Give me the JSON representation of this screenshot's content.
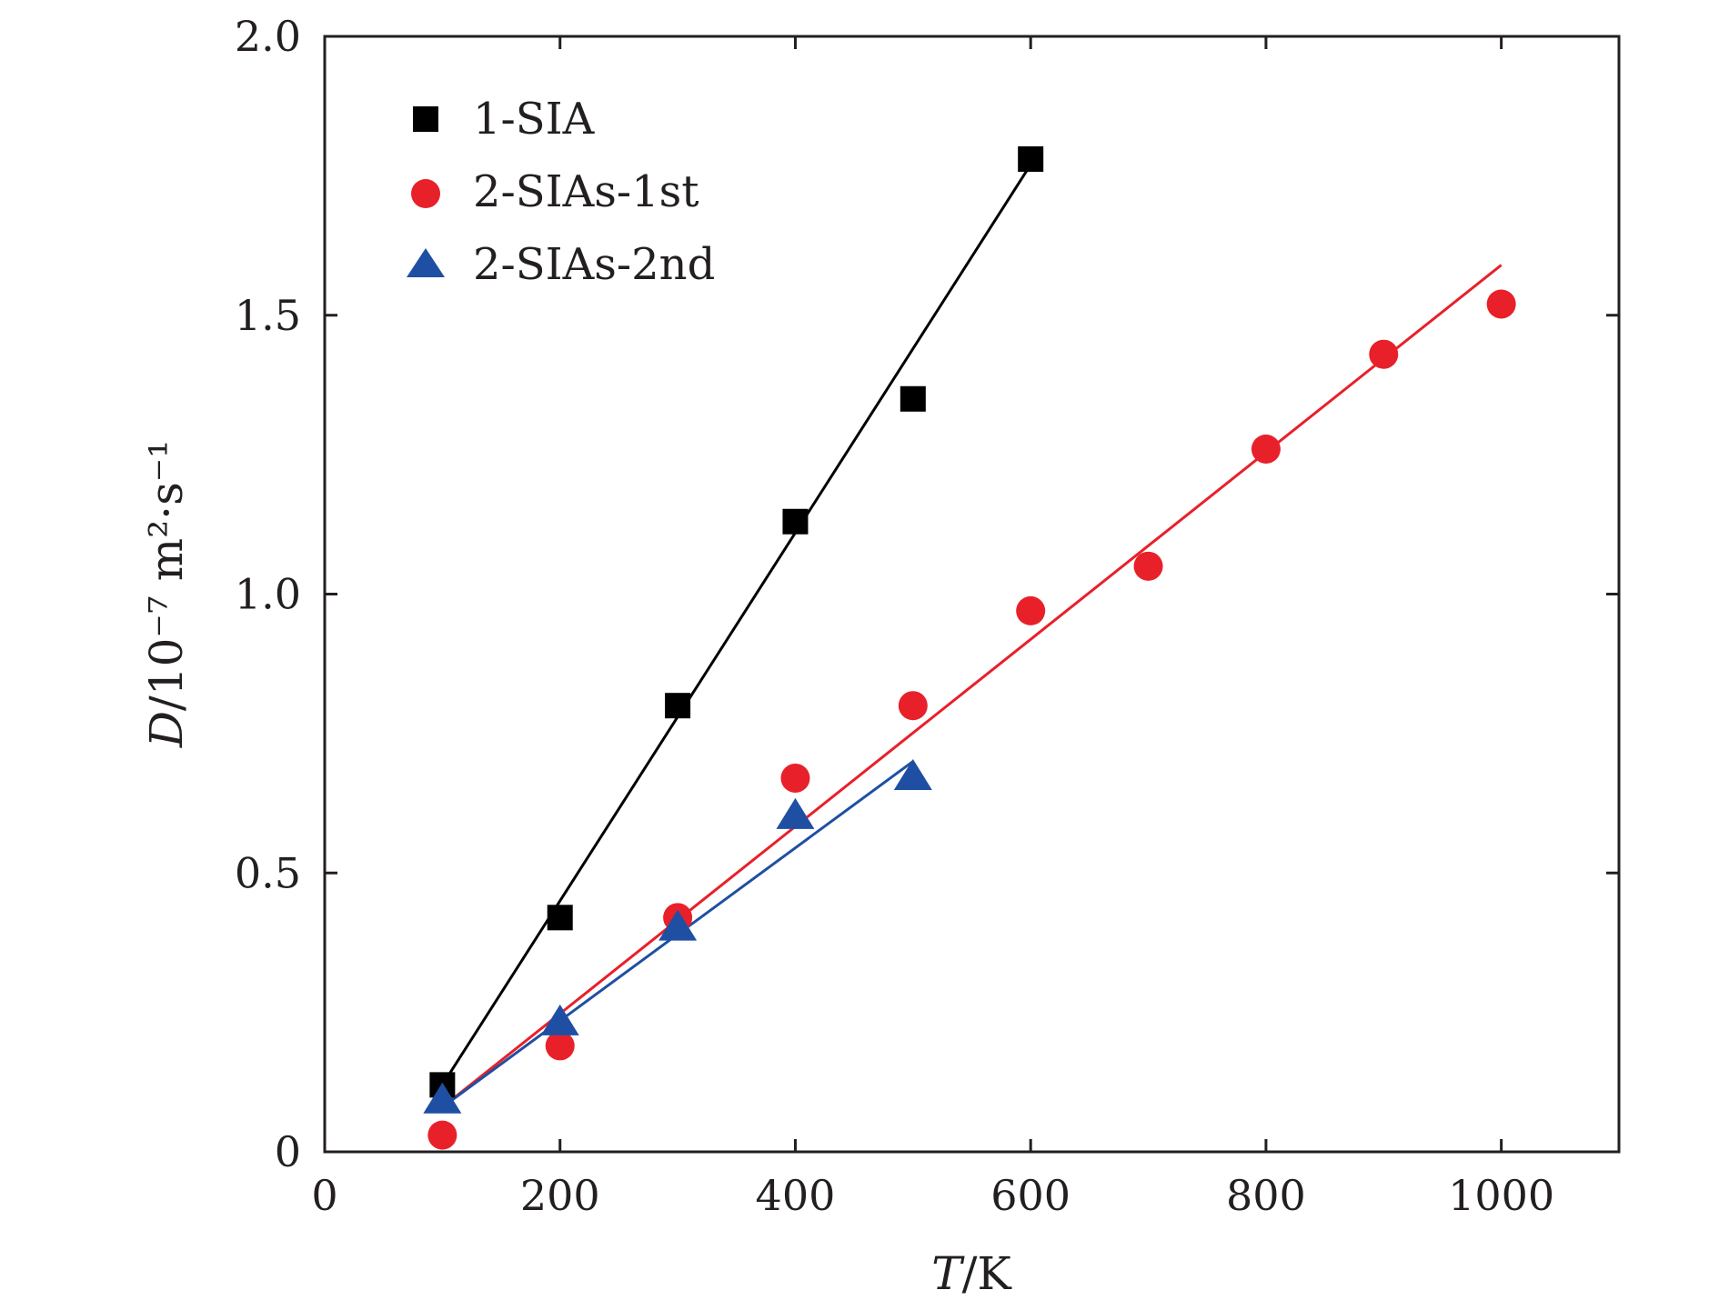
{
  "chart_data": {
    "type": "scatter",
    "title": "",
    "xlabel": "T/K",
    "xlabel_var": "T",
    "xlabel_unit": "/K",
    "ylabel": "D/10⁻⁷ m²·s⁻¹",
    "ylabel_var": "D",
    "ylabel_unit": "/10⁻⁷ m²·s⁻¹",
    "xlim": [
      0,
      1100
    ],
    "ylim": [
      0,
      2.0
    ],
    "xticks": [
      0,
      200,
      400,
      600,
      800,
      1000
    ],
    "xtick_labels": [
      "0",
      "200",
      "400",
      "600",
      "800",
      "1000"
    ],
    "yticks": [
      0,
      0.5,
      1.0,
      1.5,
      2.0
    ],
    "ytick_labels": [
      "0",
      "0.5",
      "1.0",
      "1.5",
      "2.0"
    ],
    "legend_position": "top-left",
    "grid": false,
    "series": [
      {
        "name": "1-SIA",
        "marker": "square",
        "color": "#000000",
        "x": [
          100,
          200,
          300,
          400,
          500,
          600
        ],
        "y": [
          0.12,
          0.42,
          0.8,
          1.13,
          1.35,
          1.78
        ],
        "fit": {
          "x": [
            100,
            600
          ],
          "y": [
            0.12,
            1.77
          ]
        }
      },
      {
        "name": "2-SIAs-1st",
        "marker": "circle",
        "color": "#e8202a",
        "x": [
          100,
          200,
          300,
          400,
          500,
          600,
          700,
          800,
          900,
          1000
        ],
        "y": [
          0.03,
          0.19,
          0.42,
          0.67,
          0.8,
          0.97,
          1.05,
          1.26,
          1.43,
          1.52
        ],
        "fit": {
          "x": [
            100,
            1000
          ],
          "y": [
            0.08,
            1.59
          ]
        }
      },
      {
        "name": "2-SIAs-2nd",
        "marker": "triangle",
        "color": "#1f4fa3",
        "x": [
          100,
          200,
          300,
          400,
          500
        ],
        "y": [
          0.09,
          0.23,
          0.4,
          0.6,
          0.67
        ],
        "fit": {
          "x": [
            100,
            500
          ],
          "y": [
            0.08,
            0.7
          ]
        }
      }
    ]
  }
}
